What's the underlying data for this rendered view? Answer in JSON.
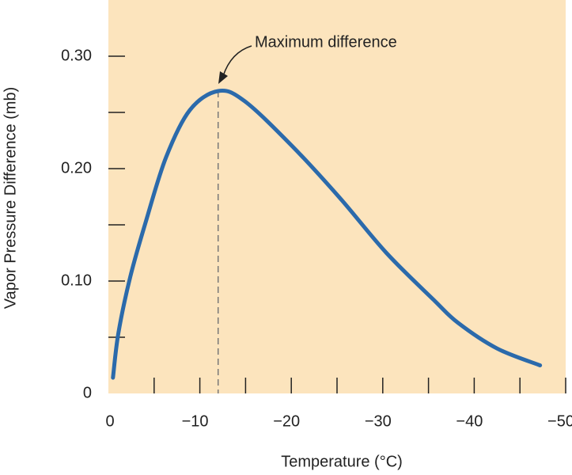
{
  "chart_data": {
    "type": "line",
    "x_label": "Temperature (°C)",
    "y_label": "Vapor Pressure Difference (mb)",
    "x": [
      -0.5,
      -1.1,
      -2.4,
      -4.1,
      -6.3,
      -8.9,
      -12,
      -14.9,
      -20.1,
      -25.3,
      -30.4,
      -35.6,
      -38.2,
      -42.5,
      -47.2
    ],
    "series": [
      {
        "color": "#2b6aab",
        "values": [
          0.014,
          0.054,
          0.104,
          0.153,
          0.21,
          0.252,
          0.269,
          0.26,
          0.22,
          0.174,
          0.125,
          0.083,
          0.063,
          0.04,
          0.025
        ]
      }
    ],
    "xlim": [
      0,
      -50
    ],
    "xticks": [
      0,
      {
        "value": -10,
        "label": "−10"
      },
      {
        "value": -20,
        "label": "−20"
      },
      {
        "value": -30,
        "label": "−30"
      },
      {
        "value": -40,
        "label": "−40"
      },
      {
        "value": -50,
        "label": "−50"
      }
    ],
    "x_minor_ticks": [
      -5,
      -15,
      -25,
      -35,
      -45
    ],
    "ylim": [
      0,
      0.35
    ],
    "yticks": [
      0,
      {
        "value": 0.1,
        "label": "0.10"
      },
      {
        "value": 0.2,
        "label": "0.20"
      },
      {
        "value": 0.3,
        "label": "0.30"
      }
    ],
    "y_minor_ticks": [
      0.05,
      0.15,
      0.25
    ],
    "annotation": {
      "text": "Maximum difference",
      "x": -12
    },
    "background": "#fce4bd"
  }
}
